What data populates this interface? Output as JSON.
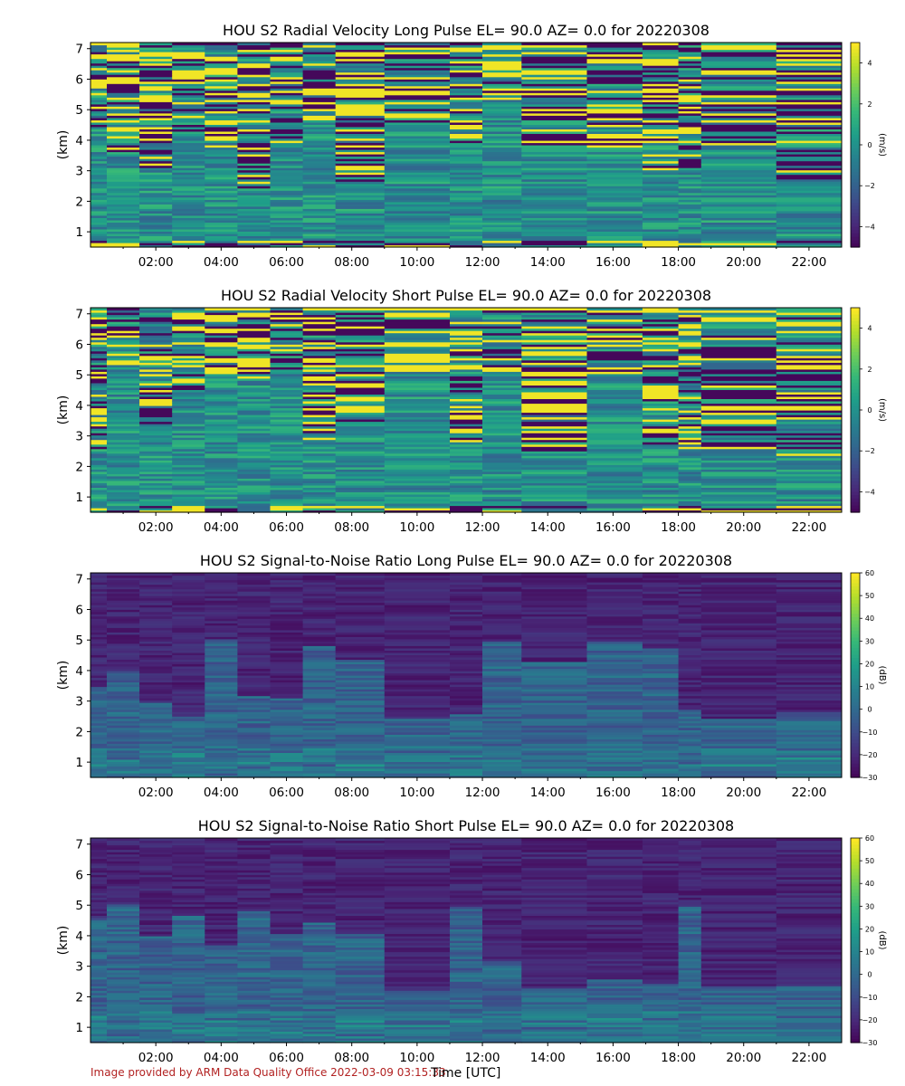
{
  "footer": {
    "credit": "Image provided by ARM Data Quality Office 2022-03-09 03:15:33",
    "xlabel": "Time [UTC]"
  },
  "chart_data": [
    {
      "type": "heatmap",
      "title": "HOU S2 Radial Velocity Long Pulse EL= 90.0 AZ= 0.0 for 20220308",
      "ylabel": "(km)",
      "xticks": [
        "02:00",
        "04:00",
        "06:00",
        "08:00",
        "10:00",
        "12:00",
        "14:00",
        "16:00",
        "18:00",
        "20:00",
        "22:00"
      ],
      "yticks": [
        "1",
        "2",
        "3",
        "4",
        "5",
        "6",
        "7"
      ],
      "xlim_hours": [
        0,
        23
      ],
      "ylim_km": [
        0.5,
        7.2
      ],
      "colorbar": {
        "label": "(m/s)",
        "ticks": [
          "4",
          "2",
          "0",
          "−2",
          "−4"
        ],
        "range": [
          -5,
          5
        ],
        "colormap": "viridis"
      },
      "field": "velocity",
      "pulse": "long"
    },
    {
      "type": "heatmap",
      "title": "HOU S2 Radial Velocity Short Pulse EL= 90.0 AZ= 0.0 for 20220308",
      "ylabel": "(km)",
      "xticks": [
        "02:00",
        "04:00",
        "06:00",
        "08:00",
        "10:00",
        "12:00",
        "14:00",
        "16:00",
        "18:00",
        "20:00",
        "22:00"
      ],
      "yticks": [
        "1",
        "2",
        "3",
        "4",
        "5",
        "6",
        "7"
      ],
      "xlim_hours": [
        0,
        23
      ],
      "ylim_km": [
        0.5,
        7.2
      ],
      "colorbar": {
        "label": "(m/s)",
        "ticks": [
          "4",
          "2",
          "0",
          "−2",
          "−4"
        ],
        "range": [
          -5,
          5
        ],
        "colormap": "viridis"
      },
      "field": "velocity",
      "pulse": "short"
    },
    {
      "type": "heatmap",
      "title": "HOU S2 Signal-to-Noise Ratio Long Pulse EL= 90.0 AZ= 0.0 for 20220308",
      "ylabel": "(km)",
      "xticks": [
        "02:00",
        "04:00",
        "06:00",
        "08:00",
        "10:00",
        "12:00",
        "14:00",
        "16:00",
        "18:00",
        "20:00",
        "22:00"
      ],
      "yticks": [
        "1",
        "2",
        "3",
        "4",
        "5",
        "6",
        "7"
      ],
      "xlim_hours": [
        0,
        23
      ],
      "ylim_km": [
        0.5,
        7.2
      ],
      "colorbar": {
        "label": "(dB)",
        "ticks": [
          "60",
          "50",
          "40",
          "30",
          "20",
          "10",
          "0",
          "−10",
          "−20",
          "−30"
        ],
        "range": [
          -30,
          60
        ],
        "colormap": "viridis"
      },
      "field": "snr",
      "pulse": "long"
    },
    {
      "type": "heatmap",
      "title": "HOU S2 Signal-to-Noise Ratio Short Pulse EL= 90.0 AZ= 0.0 for 20220308",
      "ylabel": "(km)",
      "xticks": [
        "02:00",
        "04:00",
        "06:00",
        "08:00",
        "10:00",
        "12:00",
        "14:00",
        "16:00",
        "18:00",
        "20:00",
        "22:00"
      ],
      "yticks": [
        "1",
        "2",
        "3",
        "4",
        "5",
        "6",
        "7"
      ],
      "xlim_hours": [
        0,
        23
      ],
      "ylim_km": [
        0.5,
        7.2
      ],
      "colorbar": {
        "label": "(dB)",
        "ticks": [
          "60",
          "50",
          "40",
          "30",
          "20",
          "10",
          "0",
          "−10",
          "−20",
          "−30"
        ],
        "range": [
          -30,
          60
        ],
        "colormap": "viridis"
      },
      "field": "snr",
      "pulse": "short"
    }
  ]
}
